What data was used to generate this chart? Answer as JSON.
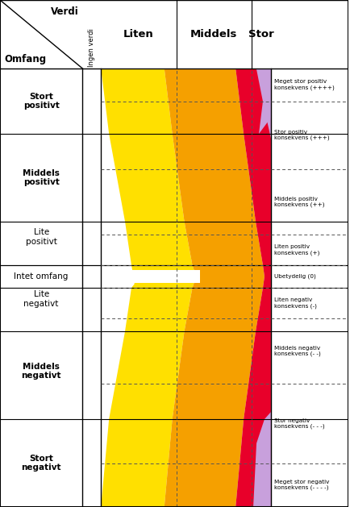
{
  "colors": {
    "yellow": "#FFE000",
    "orange": "#F5A000",
    "red": "#E8002A",
    "purple": "#C8A0DC",
    "white": "#FFFFFF",
    "black": "#000000",
    "dashed": "#555555"
  },
  "col_headers": [
    "Ingen verdi",
    "Liten",
    "Middels",
    "Stor"
  ],
  "row_labels": [
    "Stort\npositivt",
    "Middels\npositivt",
    "Lite\npositivt",
    "Intet omfang",
    "Lite\nnegativt",
    "Middels\nnegativt",
    "Stort\nnegativt"
  ],
  "row_fontweights": [
    "bold",
    "bold",
    "normal",
    "normal",
    "normal",
    "bold",
    "bold"
  ],
  "consequence_labels": [
    "Meget stor positiv\nkonsekvens (++++)",
    "Stor positiv\nkonsekvens (+++)",
    "Middels positiv\nkonsekvens (++)",
    "Liten positiv\nkonsekvens (+)",
    "Ubetydelig (0)",
    "Liten negativ\nkonsekvens (-)",
    "Middels negativ\nkonsekvens (- -)",
    "Stor negativ\nkonsekvens (- - -)",
    "Meget stor negativ\nkonsekvens (- - - -)"
  ]
}
